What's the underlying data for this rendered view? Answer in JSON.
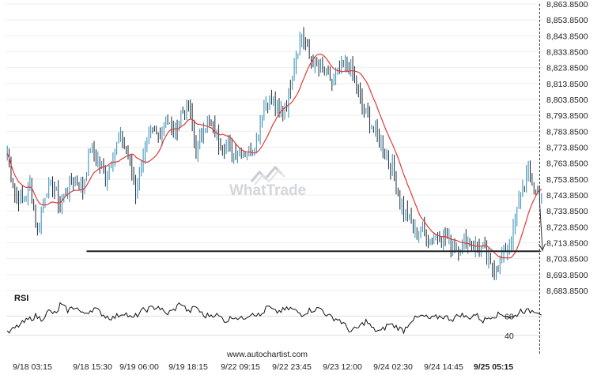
{
  "chart_data": [
    {
      "type": "candlestick",
      "ylim": [
        8683.85,
        8863.85
      ],
      "y_ticks": [
        "8,863.8500",
        "8,853.8500",
        "8,843.8500",
        "8,833.8500",
        "8,823.8500",
        "8,813.8500",
        "8,803.8500",
        "8,793.8500",
        "8,783.8500",
        "8,773.8500",
        "8,763.8500",
        "8,753.8500",
        "8,743.8500",
        "8,733.8500",
        "8,723.8500",
        "8,713.8500",
        "8,703.8500",
        "8,693.8500",
        "8,683.8500"
      ],
      "x_ticks": [
        "9/18 03:15",
        "9/18 15:30",
        "9/19 06:00",
        "9/19 18:15",
        "9/22 09:15",
        "9/22 23:45",
        "9/23 12:00",
        "9/24 02:30",
        "9/24 14:45",
        "9/25 05:15"
      ],
      "price_anchors": [
        [
          0,
          8770
        ],
        [
          4,
          8745
        ],
        [
          8,
          8740
        ],
        [
          12,
          8750
        ],
        [
          16,
          8720
        ],
        [
          20,
          8745
        ],
        [
          24,
          8750
        ],
        [
          28,
          8738
        ],
        [
          32,
          8748
        ],
        [
          36,
          8755
        ],
        [
          40,
          8748
        ],
        [
          44,
          8775
        ],
        [
          48,
          8765
        ],
        [
          52,
          8755
        ],
        [
          56,
          8770
        ],
        [
          60,
          8780
        ],
        [
          64,
          8770
        ],
        [
          68,
          8745
        ],
        [
          72,
          8770
        ],
        [
          76,
          8782
        ],
        [
          80,
          8782
        ],
        [
          84,
          8792
        ],
        [
          88,
          8782
        ],
        [
          92,
          8795
        ],
        [
          96,
          8800
        ],
        [
          100,
          8770
        ],
        [
          104,
          8788
        ],
        [
          108,
          8787
        ],
        [
          112,
          8778
        ],
        [
          116,
          8775
        ],
        [
          120,
          8770
        ],
        [
          124,
          8772
        ],
        [
          128,
          8770
        ],
        [
          132,
          8780
        ],
        [
          136,
          8800
        ],
        [
          140,
          8805
        ],
        [
          144,
          8795
        ],
        [
          148,
          8800
        ],
        [
          152,
          8828
        ],
        [
          156,
          8845
        ],
        [
          160,
          8830
        ],
        [
          164,
          8825
        ],
        [
          168,
          8820
        ],
        [
          172,
          8815
        ],
        [
          176,
          8820
        ],
        [
          180,
          8827
        ],
        [
          184,
          8817
        ],
        [
          188,
          8800
        ],
        [
          192,
          8790
        ],
        [
          196,
          8780
        ],
        [
          200,
          8770
        ],
        [
          204,
          8760
        ],
        [
          208,
          8740
        ],
        [
          212,
          8730
        ],
        [
          216,
          8720
        ],
        [
          220,
          8722
        ],
        [
          224,
          8715
        ],
        [
          228,
          8720
        ],
        [
          232,
          8718
        ],
        [
          236,
          8712
        ],
        [
          240,
          8712
        ],
        [
          244,
          8715
        ],
        [
          248,
          8712
        ],
        [
          252,
          8710
        ],
        [
          256,
          8698
        ],
        [
          260,
          8700
        ],
        [
          264,
          8710
        ],
        [
          268,
          8720
        ],
        [
          272,
          8745
        ],
        [
          276,
          8760
        ],
        [
          280,
          8745
        ],
        [
          283,
          8742
        ]
      ],
      "support_level": 8708.5,
      "support_start_index": 42,
      "projection_target": 8709.2,
      "current_index": 282,
      "candle_count": 284,
      "colors": {
        "candle": "#1a2a38",
        "candle_up": "#2f8ab3",
        "ma": "#e03a3a",
        "support": "#222222",
        "projection": "#333333",
        "current_line": "#333333"
      }
    },
    {
      "type": "line",
      "title": "RSI",
      "ylim": [
        30,
        80
      ],
      "y_ticks": [
        "60",
        "40"
      ],
      "rsi_anchors": [
        [
          0,
          42
        ],
        [
          6,
          50
        ],
        [
          10,
          55
        ],
        [
          15,
          60
        ],
        [
          18,
          57
        ],
        [
          22,
          65
        ],
        [
          26,
          62
        ],
        [
          28,
          72
        ],
        [
          32,
          66
        ],
        [
          36,
          70
        ],
        [
          40,
          62
        ],
        [
          46,
          68
        ],
        [
          52,
          60
        ],
        [
          56,
          58
        ],
        [
          62,
          64
        ],
        [
          66,
          57
        ],
        [
          72,
          66
        ],
        [
          76,
          68
        ],
        [
          80,
          70
        ],
        [
          84,
          62
        ],
        [
          88,
          66
        ],
        [
          92,
          74
        ],
        [
          96,
          64
        ],
        [
          100,
          70
        ],
        [
          104,
          60
        ],
        [
          110,
          62
        ],
        [
          116,
          55
        ],
        [
          120,
          60
        ],
        [
          124,
          57
        ],
        [
          130,
          64
        ],
        [
          134,
          60
        ],
        [
          138,
          70
        ],
        [
          142,
          64
        ],
        [
          150,
          68
        ],
        [
          156,
          62
        ],
        [
          160,
          66
        ],
        [
          166,
          68
        ],
        [
          170,
          60
        ],
        [
          176,
          56
        ],
        [
          182,
          44
        ],
        [
          186,
          48
        ],
        [
          190,
          55
        ],
        [
          194,
          46
        ],
        [
          198,
          44
        ],
        [
          202,
          52
        ],
        [
          206,
          49
        ],
        [
          210,
          45
        ],
        [
          214,
          56
        ],
        [
          220,
          60
        ],
        [
          224,
          57
        ],
        [
          230,
          60
        ],
        [
          236,
          57
        ],
        [
          240,
          62
        ],
        [
          244,
          58
        ],
        [
          248,
          62
        ],
        [
          252,
          55
        ],
        [
          256,
          60
        ],
        [
          262,
          62
        ],
        [
          268,
          58
        ],
        [
          272,
          66
        ],
        [
          276,
          65
        ],
        [
          280,
          66
        ],
        [
          283,
          63
        ]
      ],
      "colors": {
        "line": "#111111",
        "ref_line": "#dddddd"
      }
    }
  ],
  "watermark": {
    "text": "WhatTrade",
    "icon": "chart-trend-icon"
  },
  "footer": {
    "source": "www.autochartist.com"
  }
}
